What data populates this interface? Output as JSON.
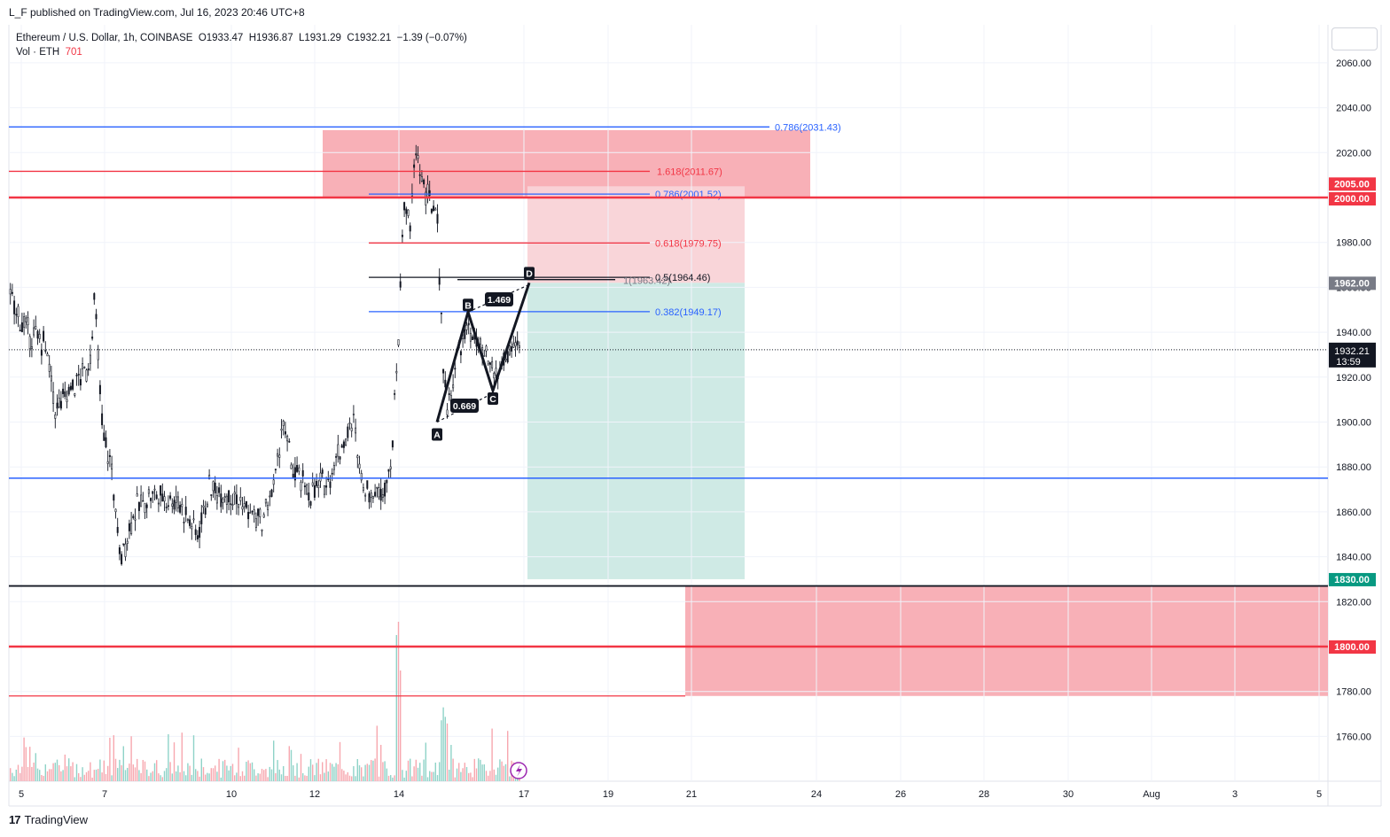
{
  "header": {
    "published": "L_F published on TradingView.com, Jul 16, 2023 20:46 UTC+8"
  },
  "legend": {
    "symbol": "Ethereum / U.S. Dollar, 1h, COINBASE",
    "open": "O1933.47",
    "high": "H1936.87",
    "low": "L1931.29",
    "close": "C1932.21",
    "change": "−1.39 (−0.07%)",
    "volume_label": "Vol · ETH",
    "volume_value": "701"
  },
  "footer": {
    "logo": "17",
    "brand": "TradingView"
  },
  "colors": {
    "red": "#f23645",
    "blue": "#2962ff",
    "green": "#089981",
    "redzone": "#f7a7af",
    "tealzone": "#cfeae5"
  },
  "chart_data": {
    "type": "candlestick",
    "y_ticks": [
      "2060.00",
      "2040.00",
      "2020.00",
      "2000.00",
      "1980.00",
      "1960.00",
      "1940.00",
      "1920.00",
      "1900.00",
      "1880.00",
      "1860.00",
      "1840.00",
      "1820.00",
      "1800.00",
      "1780.00",
      "1760.00"
    ],
    "x_ticks": [
      "5",
      "7",
      "10",
      "12",
      "14",
      "17",
      "19",
      "21",
      "24",
      "26",
      "28",
      "30",
      "Aug",
      "3",
      "5"
    ],
    "ylim": [
      1740,
      2070
    ],
    "last_price": {
      "price": 1932.21,
      "label": "1932.21",
      "countdown": "13:59"
    },
    "price_badges": [
      {
        "price": 2005,
        "label": "2005.00",
        "color": "#f23645"
      },
      {
        "price": 2000,
        "label": "2000.00",
        "color": "#f23645"
      },
      {
        "price": 1962,
        "label": "1962.00",
        "color": "#787b86"
      },
      {
        "price": 1830,
        "label": "1830.00",
        "color": "#089981"
      },
      {
        "price": 1800,
        "label": "1800.00",
        "color": "#f23645"
      }
    ],
    "levels": [
      {
        "price": 2031.43,
        "color": "#2962ff",
        "text": "0.786(2031.43)",
        "label_color": "#2962ff"
      },
      {
        "price": 2011.67,
        "color": "#f23645",
        "text": "1.618(2011.67)",
        "label_color": "#f23645"
      },
      {
        "price": 2001.52,
        "color": "#2962ff",
        "text": "0.786(2001.52)",
        "label_color": "#2962ff"
      },
      {
        "price": 1979.75,
        "color": "#f23645",
        "text": "0.618(1979.75)",
        "label_color": "#f23645"
      },
      {
        "price": 1964.46,
        "color": "#131722",
        "text": "0.5(1964.46)",
        "label_color": "#131722"
      },
      {
        "price": 1949.17,
        "color": "#2962ff",
        "text": "0.382(1949.17)",
        "label_color": "#2962ff"
      },
      {
        "price": 1875,
        "color": "#2962ff",
        "text": ""
      },
      {
        "price": 2000,
        "color": "#f23645",
        "text": ""
      },
      {
        "price": 1827,
        "color": "#131722",
        "text": ""
      },
      {
        "price": 1800,
        "color": "#f23645",
        "text": ""
      },
      {
        "price": 1778,
        "color": "#f23645",
        "text": ""
      }
    ],
    "harmonic": {
      "points": [
        {
          "label": "A",
          "price": 1900
        },
        {
          "label": "B",
          "price": 1949
        },
        {
          "label": "C",
          "price": 1914
        },
        {
          "label": "D",
          "price": 1962
        }
      ],
      "ratios": [
        "1.469",
        "0.669"
      ],
      "small_label": "1(1963.42)"
    },
    "zones": [
      {
        "name": "supply-zone",
        "top": 2030,
        "bottom": 2000
      },
      {
        "name": "short-stop-zone",
        "top": 2005,
        "bottom": 1962
      },
      {
        "name": "short-target-zone",
        "top": 1962,
        "bottom": 1830
      },
      {
        "name": "demand-zone",
        "top": 1827,
        "bottom": 1778
      }
    ]
  }
}
